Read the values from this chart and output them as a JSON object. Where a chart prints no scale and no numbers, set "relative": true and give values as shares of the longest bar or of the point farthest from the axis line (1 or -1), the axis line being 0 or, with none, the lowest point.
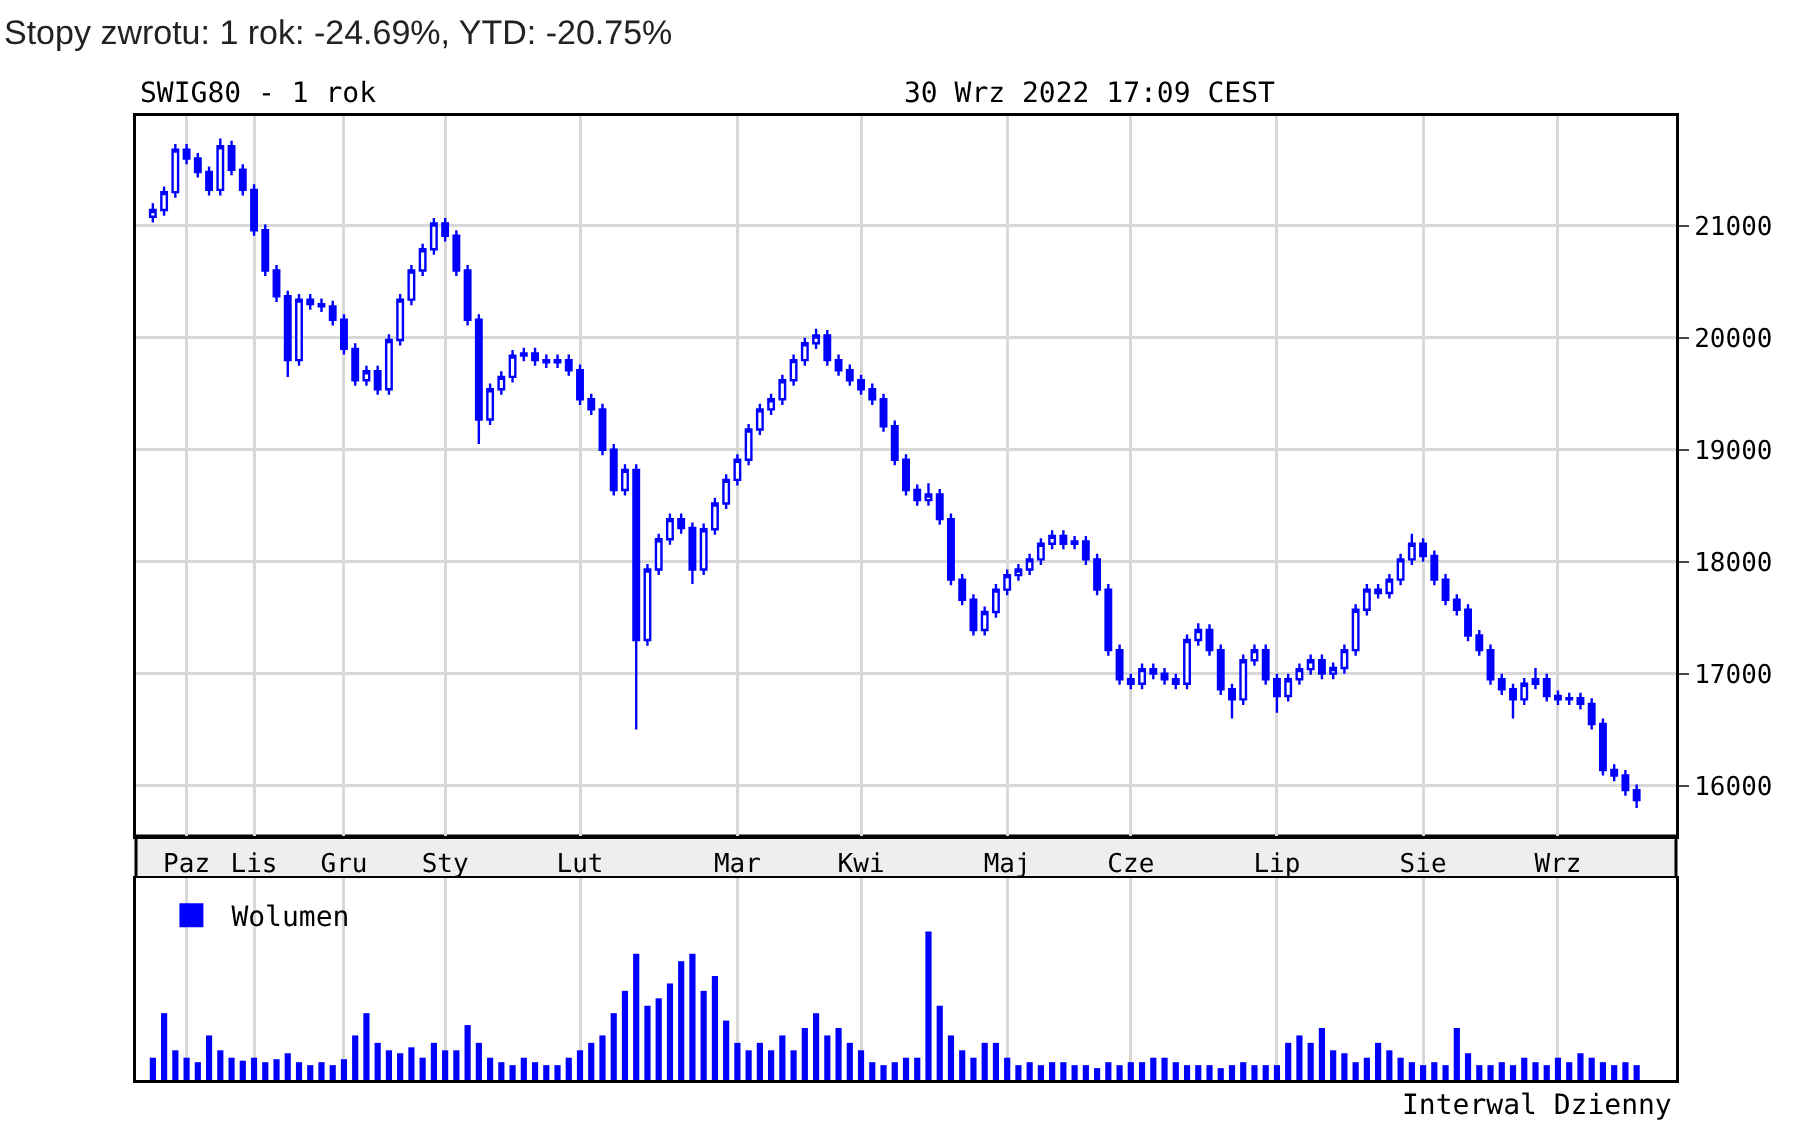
{
  "chart_data": [
    {
      "type": "candlestick",
      "title": "SWIG80 - 1 rok",
      "subtitle": "30 Wrz 2022 17:09 CEST",
      "annotations": [
        "Stopy zwrotu: 1 rok: -24.69%, YTD: -20.75%"
      ],
      "categories": [
        null,
        null,
        null,
        "Paz",
        null,
        null,
        null,
        null,
        null,
        "Lis",
        null,
        null,
        null,
        null,
        null,
        null,
        null,
        "Gru",
        null,
        null,
        null,
        null,
        null,
        null,
        null,
        null,
        "Sty",
        null,
        null,
        null,
        null,
        null,
        null,
        null,
        null,
        null,
        null,
        null,
        "Lut",
        null,
        null,
        null,
        null,
        null,
        null,
        null,
        null,
        null,
        null,
        null,
        null,
        null,
        "Mar",
        null,
        null,
        null,
        null,
        null,
        null,
        null,
        null,
        null,
        null,
        "Kwi",
        null,
        null,
        null,
        null,
        null,
        null,
        null,
        null,
        null,
        null,
        null,
        null,
        "Maj",
        null,
        null,
        null,
        null,
        null,
        null,
        null,
        null,
        null,
        null,
        "Cze",
        null,
        null,
        null,
        null,
        null,
        null,
        null,
        null,
        null,
        null,
        null,
        null,
        "Lip",
        null,
        null,
        null,
        null,
        null,
        null,
        null,
        null,
        null,
        null,
        null,
        null,
        "Sie",
        null,
        null,
        null,
        null,
        null,
        null,
        null,
        null,
        null,
        null,
        null,
        "Wrz",
        null,
        null,
        null,
        null,
        null,
        null,
        null
      ],
      "series": [
        {
          "color": "#0000ff",
          "ohlc": [
            [
              21080,
              21200,
              21030,
              21140
            ],
            [
              21140,
              21350,
              21090,
              21300
            ],
            [
              21300,
              21730,
              21250,
              21680
            ],
            [
              21680,
              21730,
              21550,
              21600
            ],
            [
              21600,
              21650,
              21430,
              21480
            ],
            [
              21480,
              21530,
              21270,
              21320
            ],
            [
              21320,
              21780,
              21270,
              21710
            ],
            [
              21710,
              21760,
              21450,
              21500
            ],
            [
              21500,
              21550,
              21270,
              21320
            ],
            [
              21320,
              21370,
              20910,
              20960
            ],
            [
              20960,
              21010,
              20550,
              20600
            ],
            [
              20600,
              20650,
              20320,
              20370
            ],
            [
              20370,
              20420,
              19650,
              19800
            ],
            [
              19800,
              20390,
              19750,
              20340
            ],
            [
              20340,
              20390,
              20250,
              20300
            ],
            [
              20300,
              20350,
              20230,
              20280
            ],
            [
              20280,
              20330,
              20110,
              20160
            ],
            [
              20160,
              20210,
              19850,
              19900
            ],
            [
              19900,
              19950,
              19570,
              19620
            ],
            [
              19620,
              19750,
              19570,
              19700
            ],
            [
              19700,
              19750,
              19490,
              19540
            ],
            [
              19540,
              20030,
              19490,
              19980
            ],
            [
              19980,
              20390,
              19930,
              20340
            ],
            [
              20340,
              20650,
              20290,
              20600
            ],
            [
              20600,
              20840,
              20550,
              20790
            ],
            [
              20790,
              21070,
              20740,
              21020
            ],
            [
              21020,
              21070,
              20860,
              20910
            ],
            [
              20910,
              20960,
              20550,
              20600
            ],
            [
              20600,
              20650,
              20110,
              20160
            ],
            [
              20160,
              20210,
              19050,
              19270
            ],
            [
              19270,
              19590,
              19220,
              19540
            ],
            [
              19540,
              19700,
              19490,
              19650
            ],
            [
              19650,
              19890,
              19600,
              19840
            ],
            [
              19840,
              19910,
              19790,
              19860
            ],
            [
              19860,
              19910,
              19750,
              19800
            ],
            [
              19800,
              19850,
              19730,
              19780
            ],
            [
              19780,
              19850,
              19730,
              19800
            ],
            [
              19800,
              19850,
              19660,
              19710
            ],
            [
              19710,
              19760,
              19400,
              19450
            ],
            [
              19450,
              19500,
              19310,
              19360
            ],
            [
              19360,
              19410,
              18950,
              19000
            ],
            [
              19000,
              19050,
              18590,
              18640
            ],
            [
              18640,
              18870,
              18590,
              18820
            ],
            [
              18820,
              18870,
              16500,
              17300
            ],
            [
              17300,
              17980,
              17250,
              17930
            ],
            [
              17930,
              18250,
              17880,
              18200
            ],
            [
              18200,
              18430,
              18150,
              18380
            ],
            [
              18380,
              18430,
              18250,
              18300
            ],
            [
              18300,
              18350,
              17800,
              17930
            ],
            [
              17930,
              18340,
              17880,
              18290
            ],
            [
              18290,
              18570,
              18240,
              18520
            ],
            [
              18520,
              18780,
              18470,
              18730
            ],
            [
              18730,
              18960,
              18680,
              18910
            ],
            [
              18910,
              19230,
              18860,
              19180
            ],
            [
              19180,
              19410,
              19130,
              19360
            ],
            [
              19360,
              19500,
              19310,
              19450
            ],
            [
              19450,
              19670,
              19400,
              19620
            ],
            [
              19620,
              19850,
              19570,
              19800
            ],
            [
              19800,
              20000,
              19750,
              19950
            ],
            [
              19950,
              20080,
              19900,
              20020
            ],
            [
              20020,
              20070,
              19750,
              19800
            ],
            [
              19800,
              19850,
              19660,
              19710
            ],
            [
              19710,
              19760,
              19570,
              19620
            ],
            [
              19620,
              19670,
              19490,
              19540
            ],
            [
              19540,
              19590,
              19400,
              19450
            ],
            [
              19450,
              19500,
              19160,
              19210
            ],
            [
              19210,
              19260,
              18860,
              18910
            ],
            [
              18910,
              18960,
              18590,
              18640
            ],
            [
              18640,
              18690,
              18500,
              18550
            ],
            [
              18550,
              18700,
              18500,
              18600
            ],
            [
              18600,
              18650,
              18330,
              18380
            ],
            [
              18380,
              18430,
              17790,
              17840
            ],
            [
              17840,
              17890,
              17610,
              17660
            ],
            [
              17660,
              17710,
              17340,
              17390
            ],
            [
              17390,
              17600,
              17340,
              17550
            ],
            [
              17550,
              17800,
              17500,
              17750
            ],
            [
              17750,
              17930,
              17700,
              17880
            ],
            [
              17880,
              17980,
              17830,
              17930
            ],
            [
              17930,
              18070,
              17880,
              18020
            ],
            [
              18020,
              18210,
              17970,
              18160
            ],
            [
              18160,
              18280,
              18110,
              18230
            ],
            [
              18230,
              18280,
              18110,
              18160
            ],
            [
              18160,
              18230,
              18110,
              18180
            ],
            [
              18180,
              18230,
              17970,
              18020
            ],
            [
              18020,
              18070,
              17700,
              17750
            ],
            [
              17750,
              17800,
              17160,
              17210
            ],
            [
              17210,
              17260,
              16900,
              16950
            ],
            [
              16950,
              17000,
              16860,
              16910
            ],
            [
              16910,
              17090,
              16860,
              17040
            ],
            [
              17040,
              17090,
              16950,
              17000
            ],
            [
              17000,
              17050,
              16900,
              16950
            ],
            [
              16950,
              17000,
              16860,
              16910
            ],
            [
              16910,
              17350,
              16860,
              17300
            ],
            [
              17300,
              17450,
              17250,
              17390
            ],
            [
              17390,
              17440,
              17160,
              17210
            ],
            [
              17210,
              17260,
              16810,
              16860
            ],
            [
              16860,
              16910,
              16600,
              16770
            ],
            [
              16770,
              17170,
              16720,
              17120
            ],
            [
              17120,
              17260,
              17070,
              17210
            ],
            [
              17210,
              17260,
              16900,
              16950
            ],
            [
              16950,
              17000,
              16650,
              16800
            ],
            [
              16800,
              17000,
              16750,
              16950
            ],
            [
              16950,
              17090,
              16900,
              17040
            ],
            [
              17040,
              17170,
              16990,
              17120
            ],
            [
              17120,
              17170,
              16950,
              17000
            ],
            [
              17000,
              17100,
              16950,
              17050
            ],
            [
              17050,
              17260,
              17000,
              17210
            ],
            [
              17210,
              17620,
              17160,
              17570
            ],
            [
              17570,
              17800,
              17520,
              17750
            ],
            [
              17750,
              17800,
              17670,
              17720
            ],
            [
              17720,
              17890,
              17670,
              17840
            ],
            [
              17840,
              18070,
              17790,
              18020
            ],
            [
              18020,
              18250,
              17970,
              18160
            ],
            [
              18160,
              18210,
              18000,
              18050
            ],
            [
              18050,
              18100,
              17790,
              17840
            ],
            [
              17840,
              17890,
              17610,
              17660
            ],
            [
              17660,
              17710,
              17520,
              17570
            ],
            [
              17570,
              17620,
              17290,
              17340
            ],
            [
              17340,
              17390,
              17160,
              17210
            ],
            [
              17210,
              17260,
              16900,
              16950
            ],
            [
              16950,
              17000,
              16810,
              16860
            ],
            [
              16860,
              16910,
              16600,
              16770
            ],
            [
              16770,
              16960,
              16720,
              16910
            ],
            [
              16910,
              17050,
              16860,
              16950
            ],
            [
              16950,
              17000,
              16750,
              16800
            ],
            [
              16800,
              16850,
              16720,
              16770
            ],
            [
              16770,
              16830,
              16720,
              16780
            ],
            [
              16780,
              16830,
              16680,
              16730
            ],
            [
              16730,
              16780,
              16500,
              16550
            ],
            [
              16550,
              16600,
              16090,
              16140
            ],
            [
              16140,
              16190,
              16040,
              16090
            ],
            [
              16090,
              16140,
              15910,
              15960
            ],
            [
              15960,
              16010,
              15800,
              15870
            ]
          ]
        }
      ],
      "ylim": [
        15550,
        21980
      ],
      "yticks": [
        16000,
        17000,
        18000,
        19000,
        20000,
        21000
      ],
      "grid": true
    },
    {
      "type": "bar",
      "relative": true,
      "legend": "top left",
      "grid": "x",
      "annotations": [
        "Interwal Dzienny"
      ],
      "categories": [
        null,
        null,
        null,
        null,
        null,
        null,
        null,
        null,
        null,
        null,
        null,
        null,
        null,
        null,
        null,
        null,
        null,
        null,
        null,
        null,
        null,
        null,
        null,
        null,
        null,
        null,
        null,
        null,
        null,
        null,
        null,
        null,
        null,
        null,
        null,
        null,
        null,
        null,
        null,
        null,
        null,
        null,
        null,
        null,
        null,
        null,
        null,
        null,
        null,
        null,
        null,
        null,
        null,
        null,
        null,
        null,
        null,
        null,
        null,
        null,
        null,
        null,
        null,
        null,
        null,
        null,
        null,
        null,
        null,
        null,
        null,
        null,
        null,
        null,
        null,
        null,
        null,
        null,
        null,
        null,
        null,
        null,
        null,
        null,
        null,
        null,
        null,
        null,
        null,
        null,
        null,
        null,
        null,
        null,
        null,
        null,
        null,
        null,
        null,
        null,
        null,
        null,
        null,
        null,
        null,
        null,
        null,
        null,
        null,
        null,
        null,
        null,
        null,
        null,
        null,
        null,
        null,
        null,
        null,
        null,
        null,
        null,
        null,
        null,
        null,
        null,
        null,
        null,
        null,
        null,
        null,
        null,
        null
      ],
      "series": [
        {
          "name": "Wolumen",
          "color": "#0000ff",
          "values": [
            0.15,
            0.45,
            0.2,
            0.15,
            0.12,
            0.3,
            0.2,
            0.15,
            0.13,
            0.15,
            0.12,
            0.14,
            0.18,
            0.12,
            0.1,
            0.12,
            0.1,
            0.14,
            0.3,
            0.45,
            0.25,
            0.2,
            0.18,
            0.22,
            0.15,
            0.25,
            0.2,
            0.2,
            0.37,
            0.25,
            0.15,
            0.12,
            0.1,
            0.15,
            0.12,
            0.1,
            0.1,
            0.15,
            0.2,
            0.25,
            0.3,
            0.45,
            0.6,
            0.85,
            0.5,
            0.55,
            0.65,
            0.8,
            0.85,
            0.6,
            0.7,
            0.4,
            0.25,
            0.2,
            0.25,
            0.2,
            0.3,
            0.2,
            0.35,
            0.45,
            0.3,
            0.35,
            0.25,
            0.2,
            0.12,
            0.1,
            0.12,
            0.15,
            0.15,
            1.0,
            0.5,
            0.3,
            0.2,
            0.15,
            0.25,
            0.25,
            0.15,
            0.1,
            0.12,
            0.1,
            0.12,
            0.12,
            0.1,
            0.1,
            0.08,
            0.12,
            0.1,
            0.12,
            0.12,
            0.15,
            0.15,
            0.12,
            0.1,
            0.1,
            0.1,
            0.08,
            0.1,
            0.12,
            0.1,
            0.1,
            0.1,
            0.25,
            0.3,
            0.25,
            0.35,
            0.2,
            0.18,
            0.12,
            0.15,
            0.25,
            0.2,
            0.15,
            0.12,
            0.1,
            0.12,
            0.1,
            0.35,
            0.18,
            0.1,
            0.1,
            0.12,
            0.1,
            0.15,
            0.12,
            0.1,
            0.15,
            0.12,
            0.18,
            0.15,
            0.12,
            0.1,
            0.12,
            0.1
          ]
        }
      ]
    }
  ]
}
